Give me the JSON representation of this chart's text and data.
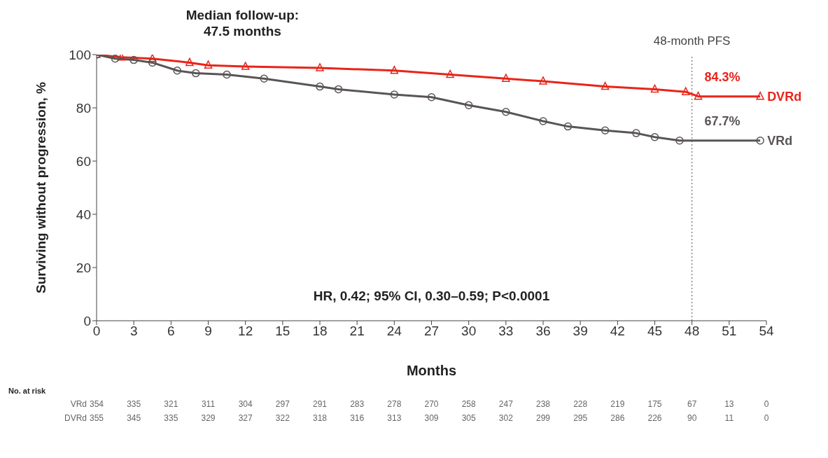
{
  "chart_data": {
    "type": "line",
    "title": "Median follow-up:\n47.5 months",
    "xlabel": "Months",
    "ylabel": "Surviving without progression, %",
    "xlim": [
      0,
      54
    ],
    "xticks": [
      0,
      3,
      6,
      9,
      12,
      15,
      18,
      21,
      24,
      27,
      30,
      33,
      36,
      39,
      42,
      45,
      48,
      51,
      54
    ],
    "ylim": [
      0,
      100
    ],
    "yticks": [
      0,
      20,
      40,
      60,
      80,
      100
    ],
    "line_style": "solid",
    "series": [
      {
        "name": "DVRd",
        "color": "#e8251a",
        "marker": "triangle",
        "x": [
          0,
          2,
          4.5,
          7.5,
          9,
          12,
          18,
          24,
          28.5,
          33,
          36,
          41,
          45,
          47.5,
          48.5,
          53.5
        ],
        "values": [
          100,
          99,
          98.5,
          97,
          96,
          95.5,
          95,
          94,
          92.5,
          91,
          90,
          88,
          87,
          86,
          84.3,
          84.3
        ]
      },
      {
        "name": "VRd",
        "color": "#5a5555",
        "marker": "circle",
        "x": [
          0,
          1.5,
          3,
          4.5,
          6.5,
          8,
          10.5,
          13.5,
          18,
          19.5,
          24,
          27,
          30,
          33,
          36,
          38,
          41,
          43.5,
          45,
          47,
          53.5
        ],
        "values": [
          100,
          98.5,
          98,
          97,
          94,
          93,
          92.5,
          91,
          88,
          87,
          85,
          84,
          81,
          78.5,
          75,
          73,
          71.5,
          70.5,
          69,
          67.7,
          67.7
        ]
      }
    ],
    "ref_lines": [
      {
        "axis": "x",
        "value": 48,
        "label": "48-month PFS",
        "color": "#555555",
        "line_style": "dotted"
      }
    ],
    "annotations": [
      "84.3%",
      "67.7%",
      "HR, 0.42; 95% CI, 0.30–0.59; P<0.0001",
      "No. at risk",
      "VRd 354 335 321 311 304 297 291 283 278 270 258 247 238 228 219 175 67 13 0",
      "DVRd 355 345 335 329 327 322 318 316 313 309 305 302 299 295 286 226 90 11 0"
    ]
  }
}
